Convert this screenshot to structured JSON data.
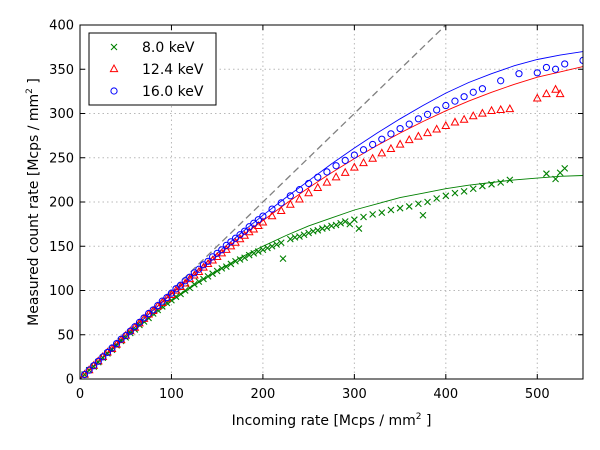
{
  "chart_data": {
    "type": "scatter",
    "xlabel": "Incoming rate [Mcps / mm",
    "xlabel_sup": "2",
    "xlabel_end": " ]",
    "ylabel": "Measured count rate [Mcps / mm",
    "ylabel_sup": "2",
    "ylabel_end": " ]",
    "xlim": [
      0,
      550
    ],
    "ylim": [
      0,
      400
    ],
    "xticks": [
      0,
      100,
      200,
      300,
      400,
      500
    ],
    "yticks": [
      0,
      50,
      100,
      150,
      200,
      250,
      300,
      350,
      400
    ],
    "grid": true,
    "legend_position": "top-left",
    "reference_line": {
      "style": "dashed",
      "color": "#808080",
      "x": [
        0,
        400
      ],
      "y": [
        0,
        400
      ]
    },
    "series": [
      {
        "name": "8.0 keV",
        "marker": "x",
        "color": "#008000",
        "points": [
          [
            5,
            5
          ],
          [
            10,
            10
          ],
          [
            15,
            14
          ],
          [
            20,
            19
          ],
          [
            25,
            24
          ],
          [
            30,
            29
          ],
          [
            35,
            33
          ],
          [
            40,
            38
          ],
          [
            45,
            43
          ],
          [
            50,
            47
          ],
          [
            55,
            52
          ],
          [
            60,
            56
          ],
          [
            65,
            61
          ],
          [
            70,
            65
          ],
          [
            75,
            69
          ],
          [
            80,
            74
          ],
          [
            85,
            78
          ],
          [
            90,
            82
          ],
          [
            95,
            86
          ],
          [
            100,
            89
          ],
          [
            105,
            93
          ],
          [
            110,
            96
          ],
          [
            115,
            100
          ],
          [
            120,
            103
          ],
          [
            125,
            107
          ],
          [
            130,
            110
          ],
          [
            135,
            113
          ],
          [
            140,
            116
          ],
          [
            145,
            119
          ],
          [
            150,
            122
          ],
          [
            155,
            125
          ],
          [
            160,
            127
          ],
          [
            165,
            130
          ],
          [
            170,
            133
          ],
          [
            175,
            135
          ],
          [
            180,
            137
          ],
          [
            185,
            140
          ],
          [
            190,
            142
          ],
          [
            195,
            144
          ],
          [
            200,
            146
          ],
          [
            205,
            148
          ],
          [
            210,
            150
          ],
          [
            215,
            152
          ],
          [
            220,
            154
          ],
          [
            222,
            136
          ],
          [
            230,
            158
          ],
          [
            235,
            160
          ],
          [
            240,
            161
          ],
          [
            245,
            163
          ],
          [
            250,
            165
          ],
          [
            255,
            167
          ],
          [
            260,
            168
          ],
          [
            265,
            170
          ],
          [
            270,
            171
          ],
          [
            275,
            173
          ],
          [
            280,
            174
          ],
          [
            285,
            176
          ],
          [
            290,
            178
          ],
          [
            295,
            175
          ],
          [
            300,
            180
          ],
          [
            305,
            170
          ],
          [
            310,
            183
          ],
          [
            320,
            186
          ],
          [
            330,
            188
          ],
          [
            340,
            191
          ],
          [
            350,
            193
          ],
          [
            360,
            195
          ],
          [
            370,
            198
          ],
          [
            375,
            185
          ],
          [
            380,
            200
          ],
          [
            390,
            204
          ],
          [
            400,
            207
          ],
          [
            410,
            210
          ],
          [
            420,
            212
          ],
          [
            430,
            215
          ],
          [
            440,
            218
          ],
          [
            450,
            220
          ],
          [
            460,
            222
          ],
          [
            470,
            225
          ],
          [
            510,
            232
          ],
          [
            520,
            226
          ],
          [
            525,
            233
          ],
          [
            530,
            238
          ]
        ]
      },
      {
        "name": "12.4 keV",
        "marker": "triangle",
        "color": "#ff0000",
        "points": [
          [
            5,
            5
          ],
          [
            10,
            10
          ],
          [
            15,
            15
          ],
          [
            20,
            20
          ],
          [
            25,
            25
          ],
          [
            30,
            30
          ],
          [
            35,
            34
          ],
          [
            40,
            39
          ],
          [
            45,
            44
          ],
          [
            50,
            49
          ],
          [
            55,
            54
          ],
          [
            60,
            58
          ],
          [
            65,
            63
          ],
          [
            70,
            68
          ],
          [
            75,
            73
          ],
          [
            80,
            77
          ],
          [
            85,
            82
          ],
          [
            90,
            86
          ],
          [
            95,
            91
          ],
          [
            100,
            95
          ],
          [
            105,
            100
          ],
          [
            110,
            104
          ],
          [
            115,
            108
          ],
          [
            120,
            113
          ],
          [
            125,
            117
          ],
          [
            130,
            121
          ],
          [
            135,
            126
          ],
          [
            140,
            130
          ],
          [
            145,
            134
          ],
          [
            150,
            138
          ],
          [
            155,
            142
          ],
          [
            160,
            146
          ],
          [
            165,
            150
          ],
          [
            170,
            154
          ],
          [
            175,
            158
          ],
          [
            180,
            162
          ],
          [
            185,
            166
          ],
          [
            190,
            169
          ],
          [
            195,
            173
          ],
          [
            200,
            177
          ],
          [
            210,
            184
          ],
          [
            220,
            190
          ],
          [
            230,
            197
          ],
          [
            240,
            203
          ],
          [
            250,
            210
          ],
          [
            260,
            216
          ],
          [
            270,
            222
          ],
          [
            280,
            228
          ],
          [
            290,
            233
          ],
          [
            300,
            239
          ],
          [
            310,
            244
          ],
          [
            320,
            249
          ],
          [
            330,
            255
          ],
          [
            340,
            260
          ],
          [
            350,
            265
          ],
          [
            360,
            270
          ],
          [
            370,
            274
          ],
          [
            380,
            278
          ],
          [
            390,
            282
          ],
          [
            400,
            286
          ],
          [
            410,
            290
          ],
          [
            420,
            293
          ],
          [
            430,
            297
          ],
          [
            440,
            300
          ],
          [
            450,
            303
          ],
          [
            460,
            304
          ],
          [
            470,
            305
          ],
          [
            500,
            317
          ],
          [
            510,
            322
          ],
          [
            520,
            327
          ],
          [
            525,
            322
          ]
        ]
      },
      {
        "name": "16.0 keV",
        "marker": "circle",
        "color": "#0000ff",
        "points": [
          [
            5,
            5
          ],
          [
            10,
            10
          ],
          [
            15,
            15
          ],
          [
            20,
            20
          ],
          [
            25,
            25
          ],
          [
            30,
            30
          ],
          [
            35,
            35
          ],
          [
            40,
            40
          ],
          [
            45,
            45
          ],
          [
            50,
            49
          ],
          [
            55,
            54
          ],
          [
            60,
            59
          ],
          [
            65,
            64
          ],
          [
            70,
            69
          ],
          [
            75,
            74
          ],
          [
            80,
            78
          ],
          [
            85,
            83
          ],
          [
            90,
            88
          ],
          [
            95,
            92
          ],
          [
            100,
            97
          ],
          [
            105,
            102
          ],
          [
            110,
            106
          ],
          [
            115,
            111
          ],
          [
            120,
            115
          ],
          [
            125,
            120
          ],
          [
            130,
            124
          ],
          [
            135,
            129
          ],
          [
            140,
            133
          ],
          [
            145,
            138
          ],
          [
            150,
            142
          ],
          [
            155,
            146
          ],
          [
            160,
            151
          ],
          [
            165,
            155
          ],
          [
            170,
            159
          ],
          [
            175,
            163
          ],
          [
            180,
            167
          ],
          [
            185,
            172
          ],
          [
            190,
            176
          ],
          [
            195,
            180
          ],
          [
            200,
            184
          ],
          [
            210,
            192
          ],
          [
            220,
            199
          ],
          [
            230,
            207
          ],
          [
            240,
            214
          ],
          [
            250,
            221
          ],
          [
            260,
            228
          ],
          [
            270,
            234
          ],
          [
            280,
            241
          ],
          [
            290,
            247
          ],
          [
            300,
            253
          ],
          [
            310,
            259
          ],
          [
            320,
            265
          ],
          [
            330,
            271
          ],
          [
            340,
            277
          ],
          [
            350,
            283
          ],
          [
            360,
            288
          ],
          [
            370,
            294
          ],
          [
            380,
            299
          ],
          [
            390,
            304
          ],
          [
            400,
            309
          ],
          [
            410,
            314
          ],
          [
            420,
            319
          ],
          [
            430,
            324
          ],
          [
            440,
            328
          ],
          [
            460,
            337
          ],
          [
            480,
            345
          ],
          [
            500,
            346
          ],
          [
            510,
            352
          ],
          [
            520,
            350
          ],
          [
            530,
            356
          ],
          [
            550,
            360
          ]
        ]
      }
    ],
    "fit_curves": [
      {
        "color": "#008000",
        "x": [
          0,
          25,
          50,
          75,
          100,
          125,
          150,
          175,
          200,
          225,
          250,
          275,
          300,
          325,
          350,
          375,
          400,
          425,
          450,
          475,
          500,
          525,
          550
        ],
        "y": [
          0,
          24,
          47,
          68,
          88,
          106,
          122,
          137,
          150,
          162,
          173,
          182,
          191,
          198,
          205,
          210,
          215,
          219,
          222,
          225,
          227,
          229,
          230
        ]
      },
      {
        "color": "#ff0000",
        "x": [
          0,
          25,
          50,
          75,
          100,
          125,
          150,
          175,
          200,
          225,
          250,
          275,
          300,
          325,
          350,
          375,
          400,
          425,
          450,
          475,
          500,
          525,
          550
        ],
        "y": [
          0,
          25,
          49,
          73,
          96,
          118,
          139,
          160,
          179,
          198,
          216,
          233,
          249,
          264,
          278,
          291,
          303,
          314,
          324,
          333,
          341,
          347,
          353
        ]
      },
      {
        "color": "#0000ff",
        "x": [
          0,
          25,
          50,
          75,
          100,
          125,
          150,
          175,
          200,
          225,
          250,
          275,
          300,
          325,
          350,
          375,
          400,
          425,
          450,
          475,
          500,
          525,
          550
        ],
        "y": [
          0,
          25,
          49,
          73,
          97,
          120,
          142,
          164,
          185,
          205,
          224,
          243,
          261,
          278,
          294,
          309,
          323,
          335,
          345,
          354,
          361,
          366,
          370
        ]
      }
    ]
  }
}
